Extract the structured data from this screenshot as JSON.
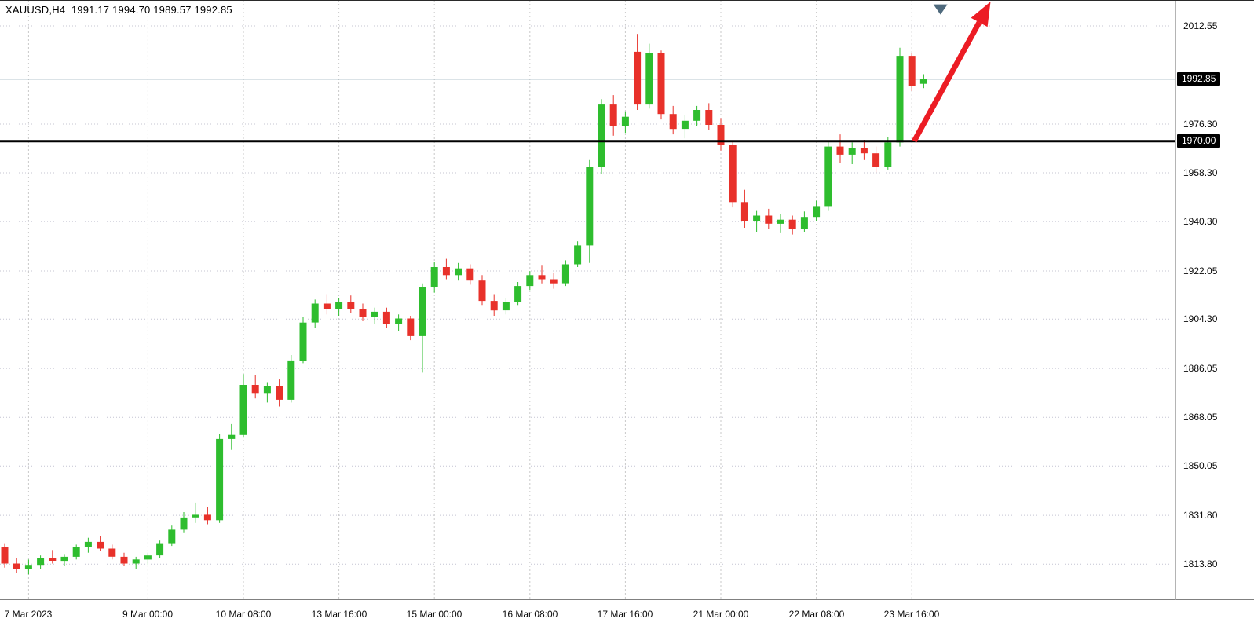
{
  "header": {
    "symbol_period": "XAUUSD,H4",
    "open": "1991.17",
    "high": "1994.70",
    "low": "1989.57",
    "close": "1992.85",
    "ohlc_text": "XAUUSD,H4  1991.17 1994.70 1989.57 1992.85"
  },
  "colors": {
    "background": "#ffffff",
    "bull": "#2ebd2e",
    "bear": "#e8312a",
    "grid_h": "#c4c4d2",
    "grid_v": "#c9c9c9",
    "current_price_line": "#9fb4bf",
    "level_line": "#000000",
    "tag_bg": "#000000",
    "tag_fg": "#ffffff",
    "arrow": "#ec1c24",
    "marker": "#4f6a7d",
    "axis_text": "#0a0a0a"
  },
  "chart_data": {
    "type": "candlestick",
    "symbol": "XAUUSD",
    "timeframe": "H4",
    "grid": true,
    "y_axis": {
      "price_min": 1800.8,
      "price_max": 2022.12,
      "ticks": [
        "2012.55",
        "1976.30",
        "1958.30",
        "1940.30",
        "1922.05",
        "1904.30",
        "1886.05",
        "1868.05",
        "1850.05",
        "1831.80",
        "1813.80"
      ]
    },
    "x_labels": [
      {
        "i": 2,
        "t": "7 Mar 2023"
      },
      {
        "i": 12,
        "t": "9 Mar 00:00"
      },
      {
        "i": 20,
        "t": "10 Mar 08:00"
      },
      {
        "i": 28,
        "t": "13 Mar 16:00"
      },
      {
        "i": 36,
        "t": "15 Mar 00:00"
      },
      {
        "i": 44,
        "t": "16 Mar 08:00"
      },
      {
        "i": 52,
        "t": "17 Mar 16:00"
      },
      {
        "i": 60,
        "t": "21 Mar 00:00"
      },
      {
        "i": 68,
        "t": "22 Mar 08:00"
      },
      {
        "i": 76,
        "t": "23 Mar 16:00"
      }
    ],
    "current_price": {
      "value": 1992.85,
      "label": "1992.85"
    },
    "levels": [
      {
        "value": 1970.0,
        "label": "1970.00",
        "style": "solid-bold"
      }
    ],
    "annotations": [
      {
        "type": "trend-arrow",
        "direction": "up-right",
        "color": "#ec1c24",
        "start_index": 76.2,
        "start_price": 1970.0,
        "end_index": 82.6,
        "end_price": 2021.5
      },
      {
        "type": "triangle-marker",
        "color": "#4f6a7d",
        "index": 78.4,
        "price": 2020.5
      }
    ],
    "candles": [
      [
        1820.0,
        1821.5,
        1812.5,
        1814.0
      ],
      [
        1814.0,
        1816.0,
        1810.5,
        1812.0
      ],
      [
        1812.0,
        1815.5,
        1810.0,
        1813.5
      ],
      [
        1813.5,
        1817.0,
        1812.0,
        1816.0
      ],
      [
        1816.0,
        1819.0,
        1814.0,
        1815.0
      ],
      [
        1815.0,
        1817.5,
        1813.0,
        1816.5
      ],
      [
        1816.5,
        1821.0,
        1815.5,
        1820.0
      ],
      [
        1820.0,
        1823.5,
        1818.0,
        1822.0
      ],
      [
        1822.0,
        1824.0,
        1818.5,
        1819.5
      ],
      [
        1819.5,
        1821.0,
        1815.5,
        1816.5
      ],
      [
        1816.5,
        1818.0,
        1813.0,
        1814.0
      ],
      [
        1814.0,
        1816.5,
        1812.0,
        1815.5
      ],
      [
        1815.5,
        1818.0,
        1813.5,
        1817.0
      ],
      [
        1817.0,
        1822.5,
        1816.0,
        1821.5
      ],
      [
        1821.5,
        1828.0,
        1820.5,
        1826.5
      ],
      [
        1826.5,
        1833.0,
        1825.5,
        1831.0
      ],
      [
        1831.0,
        1836.5,
        1829.0,
        1832.0
      ],
      [
        1832.0,
        1835.0,
        1828.5,
        1830.0
      ],
      [
        1830.0,
        1862.0,
        1829.0,
        1860.0
      ],
      [
        1860.0,
        1865.5,
        1856.0,
        1861.5
      ],
      [
        1861.5,
        1884.0,
        1860.5,
        1880.0
      ],
      [
        1880.0,
        1883.5,
        1875.0,
        1877.0
      ],
      [
        1877.0,
        1881.0,
        1873.5,
        1879.5
      ],
      [
        1879.5,
        1882.0,
        1872.0,
        1874.5
      ],
      [
        1874.5,
        1891.0,
        1873.5,
        1889.0
      ],
      [
        1889.0,
        1905.0,
        1888.0,
        1903.0
      ],
      [
        1903.0,
        1911.5,
        1901.0,
        1910.0
      ],
      [
        1910.0,
        1913.5,
        1906.0,
        1908.0
      ],
      [
        1908.0,
        1912.0,
        1905.5,
        1910.5
      ],
      [
        1910.5,
        1913.0,
        1906.5,
        1908.0
      ],
      [
        1908.0,
        1910.0,
        1903.5,
        1905.0
      ],
      [
        1905.0,
        1908.5,
        1902.5,
        1907.0
      ],
      [
        1907.0,
        1908.5,
        1901.0,
        1902.5
      ],
      [
        1902.5,
        1906.0,
        1900.0,
        1904.5
      ],
      [
        1904.5,
        1905.5,
        1896.5,
        1898.0
      ],
      [
        1898.0,
        1917.5,
        1884.5,
        1916.0
      ],
      [
        1916.0,
        1925.5,
        1914.0,
        1923.5
      ],
      [
        1923.5,
        1926.5,
        1919.0,
        1920.5
      ],
      [
        1920.5,
        1925.0,
        1918.5,
        1923.0
      ],
      [
        1923.0,
        1924.5,
        1917.0,
        1918.5
      ],
      [
        1918.5,
        1920.5,
        1909.5,
        1911.0
      ],
      [
        1911.0,
        1913.5,
        1905.5,
        1907.5
      ],
      [
        1907.5,
        1912.0,
        1906.0,
        1910.5
      ],
      [
        1910.5,
        1918.0,
        1909.5,
        1916.5
      ],
      [
        1916.5,
        1922.0,
        1915.0,
        1920.5
      ],
      [
        1920.5,
        1924.0,
        1917.5,
        1919.0
      ],
      [
        1919.0,
        1921.5,
        1915.5,
        1917.5
      ],
      [
        1917.5,
        1926.0,
        1916.5,
        1924.5
      ],
      [
        1924.5,
        1933.0,
        1923.5,
        1931.5
      ],
      [
        1931.5,
        1963.0,
        1925.0,
        1960.5
      ],
      [
        1960.5,
        1985.5,
        1958.0,
        1983.5
      ],
      [
        1983.5,
        1987.0,
        1972.0,
        1975.5
      ],
      [
        1975.5,
        1981.0,
        1973.0,
        1979.0
      ],
      [
        2003.0,
        2009.6,
        1981.5,
        1983.5
      ],
      [
        1983.5,
        2006.0,
        1982.0,
        2002.5
      ],
      [
        2002.5,
        2003.5,
        1978.0,
        1980.0
      ],
      [
        1980.0,
        1983.0,
        1972.5,
        1974.5
      ],
      [
        1974.5,
        1979.5,
        1971.0,
        1977.5
      ],
      [
        1977.5,
        1983.0,
        1975.5,
        1981.5
      ],
      [
        1981.5,
        1984.0,
        1974.0,
        1976.0
      ],
      [
        1976.0,
        1978.5,
        1966.5,
        1968.5
      ],
      [
        1968.5,
        1970.0,
        1945.5,
        1947.5
      ],
      [
        1947.5,
        1952.0,
        1938.0,
        1940.5
      ],
      [
        1940.5,
        1944.5,
        1936.5,
        1942.5
      ],
      [
        1942.5,
        1945.0,
        1937.5,
        1939.5
      ],
      [
        1939.5,
        1943.0,
        1936.0,
        1941.0
      ],
      [
        1941.0,
        1942.5,
        1935.5,
        1937.5
      ],
      [
        1937.5,
        1944.0,
        1936.5,
        1942.0
      ],
      [
        1942.0,
        1948.0,
        1940.5,
        1946.0
      ],
      [
        1946.0,
        1970.0,
        1944.5,
        1968.0
      ],
      [
        1968.0,
        1972.5,
        1962.0,
        1965.0
      ],
      [
        1965.0,
        1969.5,
        1961.5,
        1967.5
      ],
      [
        1967.5,
        1970.5,
        1963.0,
        1965.5
      ],
      [
        1965.5,
        1968.0,
        1958.5,
        1960.5
      ],
      [
        1960.5,
        1971.5,
        1959.5,
        1969.5
      ],
      [
        1969.5,
        2004.5,
        1968.0,
        2001.5
      ],
      [
        2001.5,
        2002.5,
        1988.5,
        1990.5
      ],
      [
        1991.17,
        1994.7,
        1989.57,
        1992.85
      ]
    ]
  }
}
